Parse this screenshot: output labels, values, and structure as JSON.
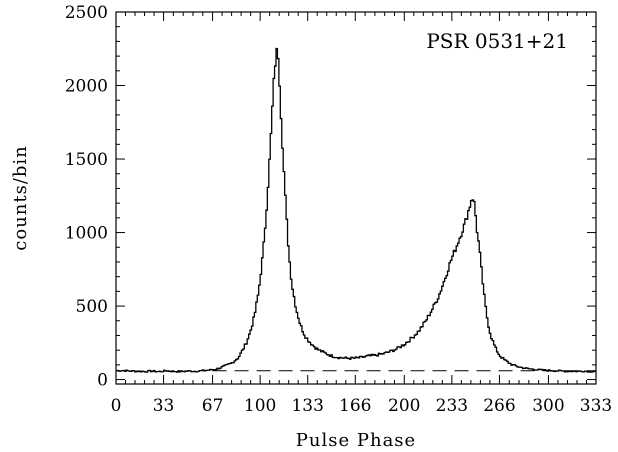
{
  "chart_data": {
    "type": "line",
    "style": "histogram-step",
    "title": "",
    "xlabel": "Pulse Phase",
    "ylabel": "counts/bin",
    "annotation": "PSR 0531+21",
    "annotation_position": "top-right",
    "xlim": [
      0,
      333
    ],
    "ylim": [
      -30,
      2500
    ],
    "x_ticks": [
      0,
      33,
      67,
      100,
      133,
      166,
      200,
      233,
      266,
      300,
      333
    ],
    "y_ticks": [
      0,
      500,
      1000,
      1500,
      2000,
      2500
    ],
    "grid": false,
    "baseline": {
      "style": "dashed",
      "value": 60,
      "x_range": [
        67,
        333
      ]
    },
    "series": [
      {
        "x": [
          0,
          5,
          10,
          15,
          20,
          25,
          30,
          35,
          40,
          45,
          50,
          55,
          60,
          65,
          70,
          75,
          80,
          85,
          90,
          93,
          96,
          99,
          102,
          104,
          106,
          108,
          109,
          110,
          111,
          112,
          113,
          114,
          116,
          118,
          120,
          122,
          125,
          128,
          131,
          134,
          137,
          140,
          145,
          150,
          155,
          160,
          165,
          170,
          175,
          180,
          185,
          190,
          195,
          200,
          205,
          210,
          215,
          220,
          224,
          228,
          232,
          236,
          239,
          242,
          244,
          246,
          247,
          248,
          249,
          250,
          252,
          254,
          256,
          258,
          260,
          263,
          266,
          270,
          275,
          280,
          285,
          290,
          295,
          300,
          305,
          310,
          315,
          320,
          325,
          330,
          333
        ],
        "values": [
          60,
          62,
          58,
          57,
          55,
          58,
          54,
          60,
          56,
          55,
          58,
          57,
          60,
          65,
          72,
          90,
          110,
          150,
          240,
          320,
          430,
          600,
          860,
          1100,
          1400,
          1750,
          1950,
          2100,
          2200,
          2260,
          2150,
          1900,
          1500,
          1150,
          850,
          650,
          480,
          370,
          300,
          260,
          230,
          205,
          180,
          160,
          150,
          145,
          145,
          150,
          160,
          165,
          175,
          190,
          210,
          240,
          280,
          330,
          400,
          490,
          570,
          680,
          800,
          900,
          980,
          1060,
          1130,
          1200,
          1250,
          1220,
          1180,
          1050,
          900,
          700,
          520,
          390,
          300,
          220,
          165,
          130,
          100,
          85,
          75,
          70,
          65,
          62,
          60,
          58,
          57,
          56,
          58,
          55,
          60
        ]
      }
    ]
  }
}
